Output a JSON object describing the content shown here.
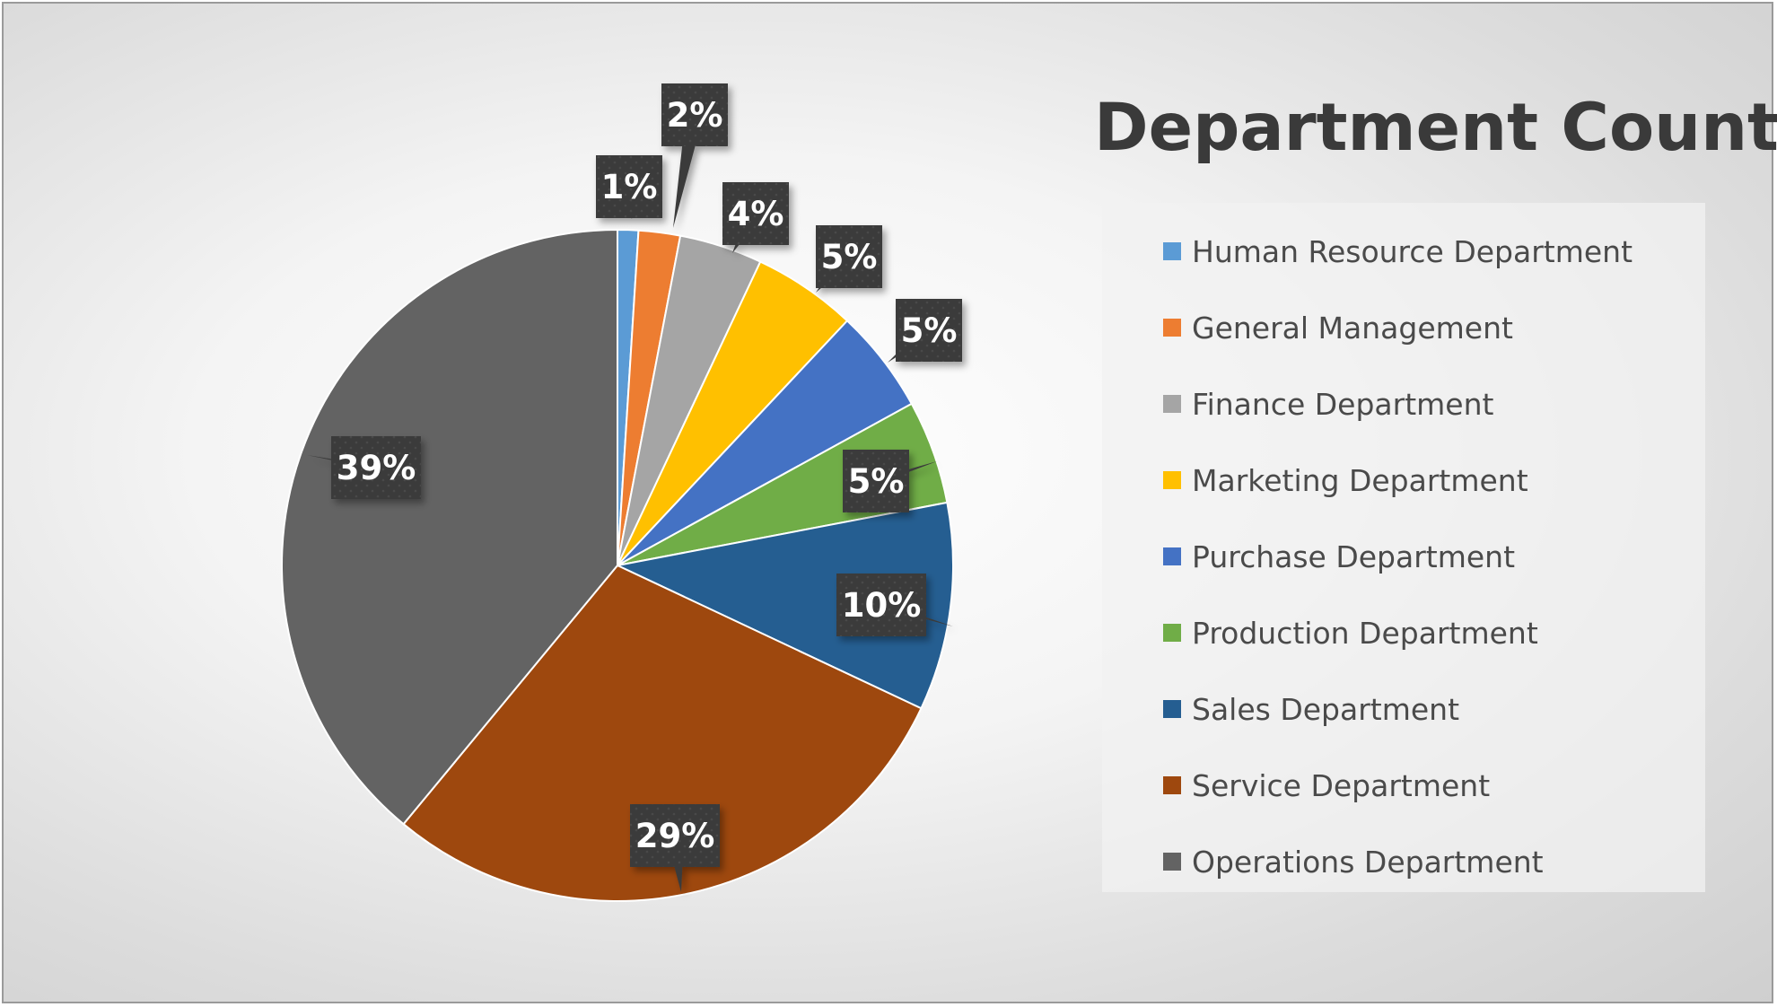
{
  "chart_data": {
    "type": "pie",
    "title": "Department Count",
    "legend_position": "right",
    "slices": [
      {
        "name": "Human Resource Department",
        "value": 1,
        "label": "1%",
        "color": "#5B9BD5"
      },
      {
        "name": "General Management",
        "value": 2,
        "label": "2%",
        "color": "#ED7D31"
      },
      {
        "name": "Finance Department",
        "value": 4,
        "label": "4%",
        "color": "#A5A5A5"
      },
      {
        "name": "Marketing Department",
        "value": 5,
        "label": "5%",
        "color": "#FFC000"
      },
      {
        "name": "Purchase Department",
        "value": 5,
        "label": "5%",
        "color": "#4472C4"
      },
      {
        "name": "Production Department",
        "value": 5,
        "label": "5%",
        "color": "#70AD47"
      },
      {
        "name": "Sales Department",
        "value": 10,
        "label": "10%",
        "color": "#255E91"
      },
      {
        "name": "Service Department",
        "value": 29,
        "label": "29%",
        "color": "#9E480E"
      },
      {
        "name": "Operations Department",
        "value": 39,
        "label": "39%",
        "color": "#636363"
      }
    ]
  }
}
